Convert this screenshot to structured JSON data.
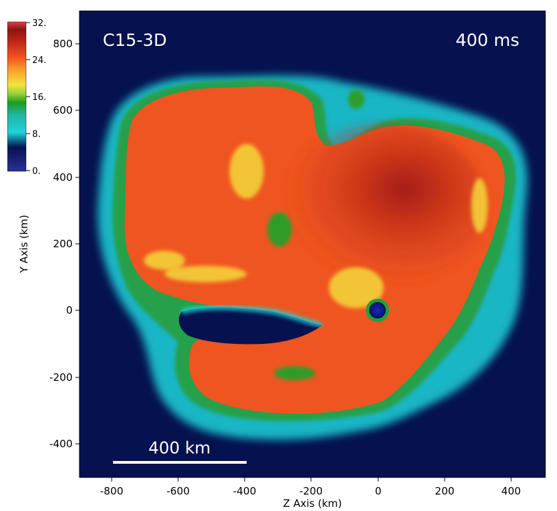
{
  "figure": {
    "model_label": "C15-3D",
    "time_label": "400 ms",
    "scale_bar_label": "400 km"
  },
  "axes": {
    "x_title": "Z Axis (km)",
    "y_title": "Y Axis (km)",
    "x_ticks": [
      "-800",
      "-600",
      "-400",
      "-200",
      "0",
      "200",
      "400"
    ],
    "y_ticks": [
      "800",
      "600",
      "400",
      "200",
      "0",
      "-200",
      "-400"
    ]
  },
  "colorbar": {
    "labels": [
      "32.",
      "24.",
      "16.",
      "8.",
      "0."
    ]
  },
  "colors": {
    "background_plasma": "#06124f",
    "shock_cyan": "#1fd3d9",
    "green": "#1f9b20",
    "yellow": "#f4e43a",
    "orange": "#f3541f",
    "dark_red": "#8a1515",
    "white": "#ffffff"
  }
}
